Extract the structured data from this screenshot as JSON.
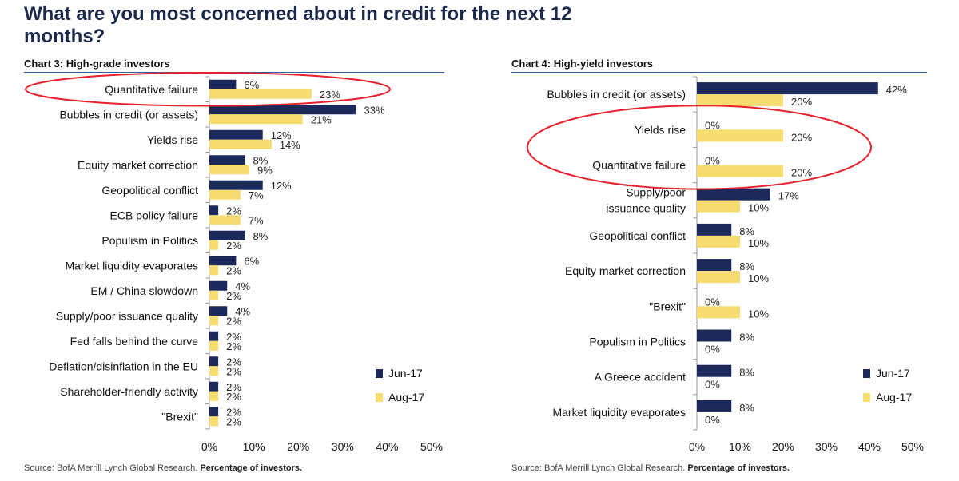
{
  "title": "What are you most concerned about in credit for the next 12 months?",
  "colors": {
    "jun": "#1b2a5a",
    "aug": "#f7dc6f",
    "highlight": "#e8202a",
    "axis": "#999999"
  },
  "chart_data": [
    {
      "type": "bar",
      "orientation": "horizontal",
      "label": "Chart 3: High-grade investors",
      "categories": [
        "Quantitative failure",
        "Bubbles in credit (or assets)",
        "Yields rise",
        "Equity market correction",
        "Geopolitical conflict",
        "ECB policy failure",
        "Populism in Politics",
        "Market liquidity evaporates",
        "EM / China slowdown",
        "Supply/poor issuance quality",
        "Fed falls behind the curve",
        "Deflation/disinflation in the EU",
        "Shareholder-friendly activity",
        "\"Brexit\""
      ],
      "series": [
        {
          "name": "Jun-17",
          "values": [
            6,
            33,
            12,
            8,
            12,
            2,
            8,
            6,
            4,
            4,
            2,
            2,
            2,
            2
          ],
          "labels": [
            "6%",
            "33%",
            "12%",
            "8%",
            "12%",
            "2%",
            "8%",
            "6%",
            "4%",
            "4%",
            "2%",
            "2%",
            "2%",
            "2%"
          ]
        },
        {
          "name": "Aug-17",
          "values": [
            23,
            21,
            14,
            9,
            7,
            7,
            2,
            2,
            2,
            2,
            2,
            2,
            2,
            2
          ],
          "labels": [
            "23%",
            "21%",
            "14%",
            "9%",
            "7%",
            "7%",
            "2%",
            "2%",
            "2%",
            "2%",
            "2%",
            "2%",
            "2%",
            "2%"
          ]
        }
      ],
      "xlim": [
        0,
        50
      ],
      "ticks": [
        0,
        10,
        20,
        30,
        40,
        50
      ],
      "tick_labels": [
        "0%",
        "10%",
        "20%",
        "30%",
        "40%",
        "50%"
      ],
      "legend": [
        "Jun-17",
        "Aug-17"
      ],
      "legend_position": "bottom-right",
      "highlighted": [
        "Quantitative failure"
      ],
      "source": "Source: BofA Merrill Lynch Global Research.",
      "source_note": "Percentage of investors."
    },
    {
      "type": "bar",
      "orientation": "horizontal",
      "label": "Chart 4: High-yield investors",
      "categories": [
        "Bubbles in credit (or assets)",
        "Yields rise",
        "Quantitative failure",
        "Supply/poor\nissuance quality",
        "Geopolitical conflict",
        "Equity market correction",
        "\"Brexit\"",
        "Populism in Politics",
        "A Greece accident",
        "Market liquidity evaporates"
      ],
      "series": [
        {
          "name": "Jun-17",
          "values": [
            42,
            0,
            0,
            17,
            8,
            8,
            0,
            8,
            8,
            8
          ],
          "labels": [
            "42%",
            "0%",
            "0%",
            "17%",
            "8%",
            "8%",
            "0%",
            "8%",
            "8%",
            "8%"
          ]
        },
        {
          "name": "Aug-17",
          "values": [
            20,
            20,
            20,
            10,
            10,
            10,
            10,
            0,
            0,
            0
          ],
          "labels": [
            "20%",
            "20%",
            "20%",
            "10%",
            "10%",
            "10%",
            "10%",
            "0%",
            "0%",
            "0%"
          ]
        }
      ],
      "xlim": [
        0,
        50
      ],
      "ticks": [
        0,
        10,
        20,
        30,
        40,
        50
      ],
      "tick_labels": [
        "0%",
        "10%",
        "20%",
        "30%",
        "40%",
        "50%"
      ],
      "legend": [
        "Jun-17",
        "Aug-17"
      ],
      "legend_position": "bottom-right",
      "highlighted": [
        "Yields rise",
        "Quantitative failure"
      ],
      "source": "Source: BofA Merrill Lynch Global Research.",
      "source_note": "Percentage of investors."
    }
  ]
}
